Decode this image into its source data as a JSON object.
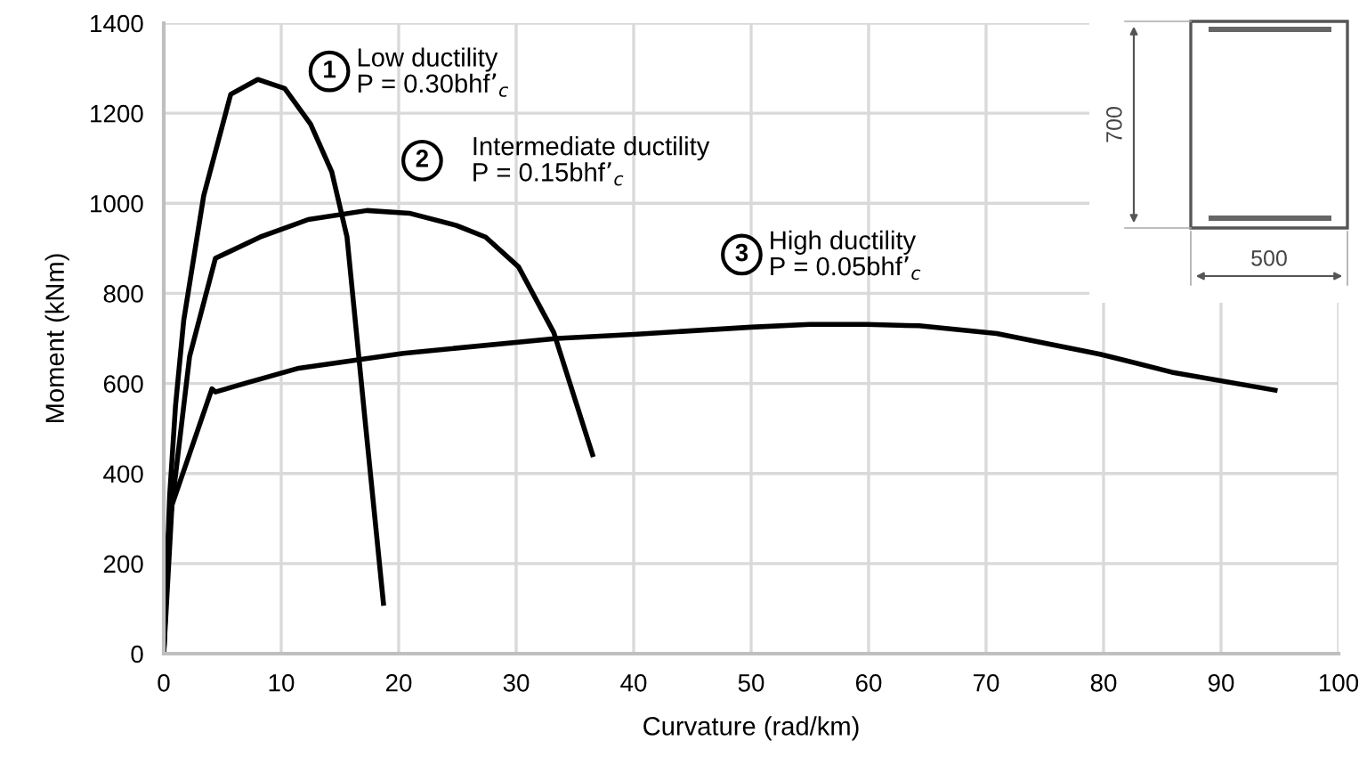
{
  "chart_data": {
    "type": "line",
    "xlabel": "Curvature (rad/km)",
    "ylabel": "Moment (kNm)",
    "xlim": [
      0,
      100
    ],
    "ylim": [
      0,
      1400
    ],
    "xticks": [
      0,
      10,
      20,
      30,
      40,
      50,
      60,
      70,
      80,
      90,
      100
    ],
    "yticks": [
      0,
      200,
      400,
      600,
      800,
      1000,
      1200,
      1400
    ],
    "grid": true,
    "marker": "none",
    "line_style": "solid",
    "series": [
      {
        "color": "#000000",
        "x": [
          0,
          0.5,
          1,
          1.7,
          3.4,
          5.7,
          8.0,
          10.3,
          12.5,
          14.3,
          15.6,
          17.1,
          18.7
        ],
        "values": [
          0,
          350,
          550,
          740,
          1017,
          1242,
          1275,
          1255,
          1176,
          1070,
          925,
          528,
          112
        ]
      },
      {
        "color": "#000000",
        "x": [
          0,
          0.4,
          2.2,
          4.4,
          8.2,
          12.3,
          17.3,
          20.9,
          24.9,
          27.4,
          30.2,
          33.2,
          36.5
        ],
        "values": [
          0,
          264,
          660,
          878,
          925,
          964,
          984,
          978,
          951,
          925,
          859,
          713,
          442
        ]
      },
      {
        "color": "#000000",
        "x": [
          0,
          0.7,
          4.1,
          4.4,
          7.0,
          11.5,
          20.4,
          33.5,
          40,
          50,
          55,
          59.8,
          64.3,
          70.9,
          79.7,
          85.8,
          94.6
        ],
        "values": [
          0,
          330,
          588,
          581,
          601,
          634,
          667,
          700,
          709,
          725,
          731,
          731,
          728,
          711,
          665,
          625,
          585
        ]
      }
    ],
    "annotations": [
      "1",
      "Low ductility\nP = 0.30bhf’$_{c}$",
      "2",
      "Intermediate ductility\nP = 0.15bhf’$_{c}$",
      "3",
      "High ductility\nP = 0.05bhf’$_{c}$",
      "700",
      "500"
    ]
  }
}
